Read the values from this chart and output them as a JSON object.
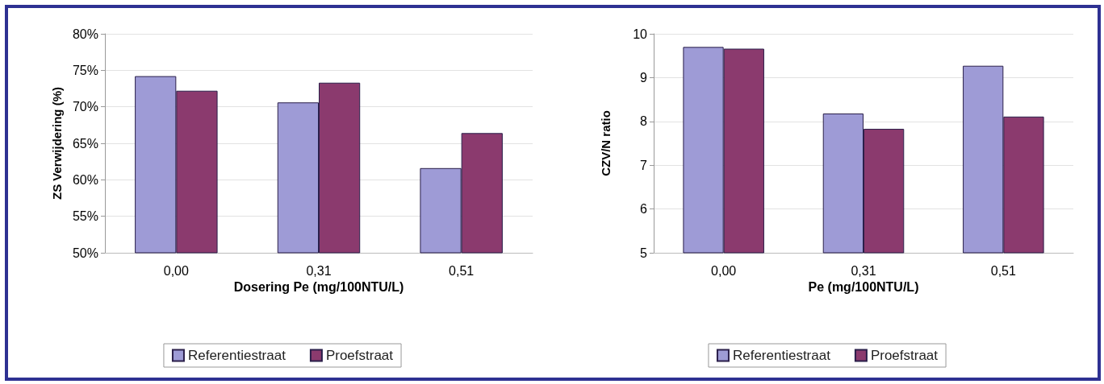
{
  "chart_data": [
    {
      "type": "bar",
      "xlabel": "Dosering Pe (mg/100NTU/L)",
      "ylabel": "ZS Verwijdering (%)",
      "categories": [
        "0,00",
        "0,31",
        "0,51"
      ],
      "series": [
        {
          "name": "Referentiestraat",
          "color": "#9e9bd6",
          "values": [
            74.2,
            70.6,
            61.6
          ]
        },
        {
          "name": "Proefstraat",
          "color": "#8b3a6e",
          "values": [
            72.2,
            73.3,
            66.4
          ]
        }
      ],
      "ylim": [
        50,
        80
      ],
      "yticks": [
        {
          "value": 50,
          "label": "50%"
        },
        {
          "value": 55,
          "label": "55%"
        },
        {
          "value": 60,
          "label": "60%"
        },
        {
          "value": 65,
          "label": "65%"
        },
        {
          "value": 70,
          "label": "70%"
        },
        {
          "value": 75,
          "label": "75%"
        },
        {
          "value": 80,
          "label": "80%"
        }
      ],
      "grid": "y",
      "legend": "bottom"
    },
    {
      "type": "bar",
      "xlabel": "Pe (mg/100NTU/L)",
      "ylabel": "CZV/N ratio",
      "categories": [
        "0,00",
        "0,31",
        "0,51"
      ],
      "series": [
        {
          "name": "Referentiestraat",
          "color": "#9e9bd6",
          "values": [
            9.7,
            8.18,
            9.27
          ]
        },
        {
          "name": "Proefstraat",
          "color": "#8b3a6e",
          "values": [
            9.66,
            7.83,
            8.11
          ]
        }
      ],
      "ylim": [
        5,
        10
      ],
      "yticks": [
        5,
        6,
        7,
        8,
        9,
        10
      ],
      "grid": "y",
      "legend": "bottom"
    }
  ]
}
